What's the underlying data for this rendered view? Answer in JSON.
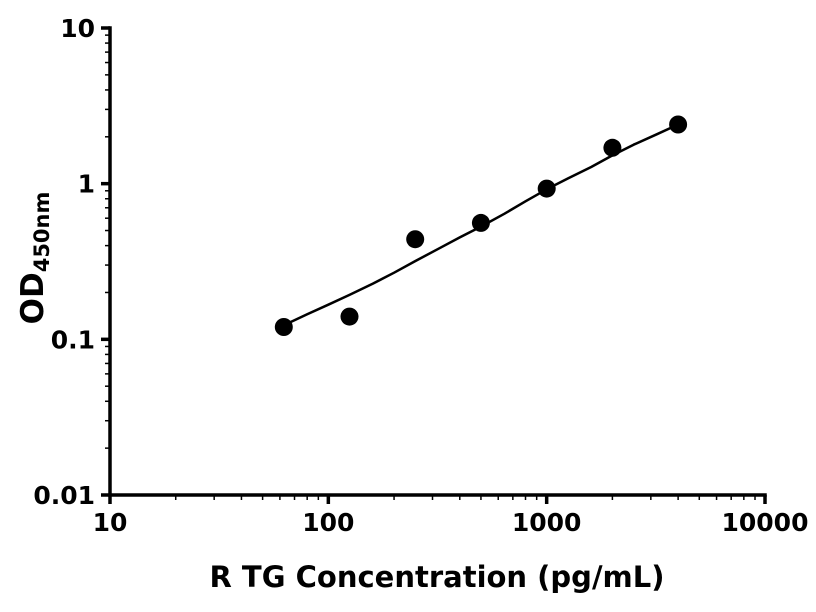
{
  "chart_data": {
    "type": "scatter",
    "title": "",
    "xlabel": "R TG Concentration (pg/mL)",
    "ylabel": "OD",
    "ylabel_subscript": "450nm",
    "x_scale": "log",
    "y_scale": "log",
    "xlim": [
      10,
      10000
    ],
    "ylim": [
      0.01,
      10
    ],
    "x_ticks": [
      10,
      100,
      1000,
      10000
    ],
    "x_tick_labels": [
      "10",
      "100",
      "1000",
      "10000"
    ],
    "y_ticks": [
      0.01,
      0.1,
      1,
      10
    ],
    "y_tick_labels": [
      "0.01",
      "0.1",
      "1",
      "10"
    ],
    "grid": false,
    "legend": false,
    "minor_ticks": true,
    "background": "#ffffff",
    "axis_color": "#000000",
    "series": [
      {
        "name": "fit_line",
        "type": "line",
        "color": "#000000",
        "x": [
          62.5,
          80,
          100,
          125,
          160,
          200,
          250,
          320,
          400,
          500,
          640,
          800,
          1000,
          1250,
          1600,
          2000,
          2500,
          3200,
          4000
        ],
        "y": [
          0.123,
          0.145,
          0.167,
          0.193,
          0.228,
          0.268,
          0.318,
          0.382,
          0.452,
          0.53,
          0.64,
          0.77,
          0.92,
          1.08,
          1.28,
          1.52,
          1.78,
          2.08,
          2.4
        ]
      },
      {
        "name": "standards",
        "type": "scatter",
        "marker": "filled-circle",
        "marker_radius": 9,
        "color": "#000000",
        "x": [
          62.5,
          125,
          250,
          500,
          1000,
          2000,
          4000
        ],
        "y": [
          0.12,
          0.14,
          0.44,
          0.56,
          0.93,
          1.7,
          2.4
        ]
      }
    ]
  }
}
